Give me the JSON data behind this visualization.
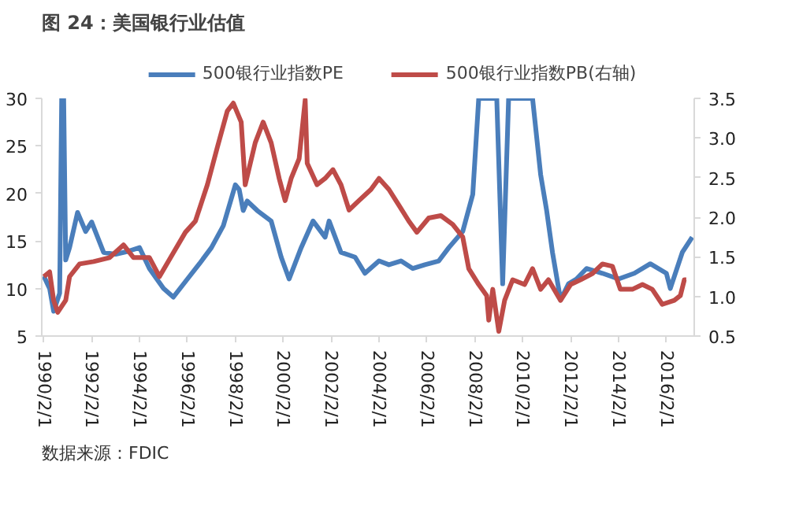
{
  "chart_data": {
    "type": "line",
    "title": "图 24：美国银行业估值",
    "x": [
      "1990-02",
      "1990-05",
      "1990-07",
      "1990-10",
      "1990-11",
      "1990-12",
      "1991-01",
      "1991-03",
      "1991-07",
      "1991-11",
      "1992-02",
      "1992-08",
      "1993-02",
      "1993-08",
      "1994-02",
      "1994-07",
      "1995-02",
      "1995-07",
      "1996-02",
      "1996-08",
      "1997-02",
      "1997-08",
      "1998-02",
      "1998-04",
      "1998-06",
      "1998-08",
      "1999-01",
      "1999-08",
      "2000-01",
      "2000-05",
      "2000-11",
      "2001-05",
      "2001-11",
      "2002-01",
      "2002-07",
      "2003-02",
      "2003-07",
      "2004-02",
      "2004-07",
      "2005-01",
      "2005-07",
      "2006-01",
      "2006-08",
      "2007-01",
      "2007-08",
      "2008-01",
      "2008-04",
      "2009-01",
      "2009-04",
      "2009-07",
      "2010-07",
      "2010-11",
      "2011-02",
      "2011-05",
      "2011-09",
      "2012-01",
      "2012-05",
      "2012-10",
      "2013-06",
      "2014-02",
      "2014-10",
      "2015-06",
      "2016-02",
      "2016-04",
      "2016-10",
      "2017-03"
    ],
    "series": [
      {
        "name": "500银行业指数PE",
        "color": "#4a7ebb",
        "values": [
          11.3,
          10,
          7.6,
          9.5,
          30,
          30,
          13,
          14.3,
          18,
          16,
          17,
          13.8,
          13.6,
          13.9,
          14.3,
          12.1,
          10,
          9.1,
          11,
          12.6,
          14.3,
          16.6,
          20.9,
          20.4,
          18.2,
          19.2,
          18.2,
          17.1,
          13.3,
          11,
          14.3,
          17.1,
          15.4,
          17.1,
          13.8,
          13.3,
          11.6,
          12.9,
          12.5,
          12.9,
          12.1,
          12.5,
          12.9,
          14.3,
          16,
          19.9,
          30,
          30,
          10.5,
          30,
          30,
          22,
          18.2,
          13.8,
          8.8,
          10.5,
          11,
          12.1,
          11.6,
          11,
          11.6,
          12.6,
          11.6,
          10,
          13.8,
          15.4
        ]
      },
      {
        "name": "500银行业指数PB(右轴)",
        "color": "#be4b48",
        "axis": "y2",
        "x": [
          "1990-02",
          "1990-05",
          "1990-07",
          "1990-09",
          "1991-01",
          "1991-03",
          "1991-08",
          "1992-03",
          "1992-11",
          "1993-06",
          "1993-11",
          "1994-07",
          "1994-12",
          "1995-07",
          "1996-01",
          "1996-06",
          "1996-12",
          "1997-05",
          "1997-10",
          "1998-01",
          "1998-05",
          "1998-07",
          "1998-12",
          "1999-04",
          "1999-08",
          "1999-12",
          "2000-03",
          "2000-06",
          "2000-10",
          "2001-01",
          "2001-02",
          "2001-07",
          "2001-11",
          "2002-03",
          "2002-07",
          "2002-11",
          "2003-04",
          "2003-10",
          "2004-02",
          "2004-07",
          "2004-12",
          "2005-05",
          "2005-09",
          "2006-03",
          "2006-09",
          "2007-03",
          "2007-08",
          "2007-11",
          "2008-04",
          "2008-08",
          "2008-09",
          "2008-11",
          "2009-02",
          "2009-05",
          "2009-09",
          "2010-03",
          "2010-07",
          "2010-11",
          "2011-03",
          "2011-09",
          "2012-02",
          "2012-07",
          "2013-01",
          "2013-06",
          "2013-11",
          "2014-03",
          "2014-09",
          "2015-02",
          "2015-07",
          "2015-12",
          "2016-06",
          "2016-09",
          "2016-11",
          "2016-12"
        ],
        "values": [
          1.25,
          1.31,
          0.95,
          0.8,
          0.95,
          1.25,
          1.41,
          1.44,
          1.49,
          1.65,
          1.49,
          1.49,
          1.25,
          1.55,
          1.81,
          1.95,
          2.41,
          2.88,
          3.34,
          3.44,
          3.2,
          2.41,
          2.94,
          3.2,
          2.94,
          2.49,
          2.21,
          2.49,
          2.74,
          3.48,
          2.68,
          2.41,
          2.49,
          2.6,
          2.41,
          2.09,
          2.21,
          2.35,
          2.49,
          2.35,
          2.15,
          1.95,
          1.81,
          1.99,
          2.02,
          1.91,
          1.75,
          1.35,
          1.15,
          1.01,
          0.7,
          1.09,
          0.56,
          0.95,
          1.21,
          1.15,
          1.35,
          1.09,
          1.21,
          0.95,
          1.15,
          1.21,
          1.29,
          1.41,
          1.38,
          1.09,
          1.09,
          1.15,
          1.09,
          0.9,
          0.95,
          1.01,
          1.21,
          1.21
        ]
      }
    ],
    "xlim": [
      "1990-01-01",
      "2017-04-01"
    ],
    "xticks": [
      {
        "value": "1990-02-01",
        "label": "1990/2/1"
      },
      {
        "value": "1992-02-01",
        "label": "1992/2/1"
      },
      {
        "value": "1994-02-01",
        "label": "1994/2/1"
      },
      {
        "value": "1996-02-01",
        "label": "1996/2/1"
      },
      {
        "value": "1998-02-01",
        "label": "1998/2/1"
      },
      {
        "value": "2000-02-01",
        "label": "2000/2/1"
      },
      {
        "value": "2002-02-01",
        "label": "2002/2/1"
      },
      {
        "value": "2004-02-01",
        "label": "2004/2/1"
      },
      {
        "value": "2006-02-01",
        "label": "2006/2/1"
      },
      {
        "value": "2008-02-01",
        "label": "2008/2/1"
      },
      {
        "value": "2010-02-01",
        "label": "2010/2/1"
      },
      {
        "value": "2012-02-01",
        "label": "2012/2/1"
      },
      {
        "value": "2014-02-01",
        "label": "2014/2/1"
      },
      {
        "value": "2016-02-01",
        "label": "2016/2/1"
      }
    ],
    "ylim": [
      5,
      30
    ],
    "yticks": [
      5,
      10,
      15,
      20,
      25,
      30
    ],
    "y2lim": [
      0.5,
      3.5
    ],
    "y2ticks": [
      {
        "value": 0.5,
        "label": "0.5"
      },
      {
        "value": 1,
        "label": "1.0"
      },
      {
        "value": 1.5,
        "label": "1.5"
      },
      {
        "value": 2,
        "label": "2.0"
      },
      {
        "value": 2.5,
        "label": "2.5"
      },
      {
        "value": 3,
        "label": "3.0"
      },
      {
        "value": 3.5,
        "label": "3.5"
      }
    ],
    "annotations": [
      "数据来源：FDIC"
    ],
    "legend": "top",
    "grid": false,
    "marker": "none",
    "line_style": "solid"
  }
}
